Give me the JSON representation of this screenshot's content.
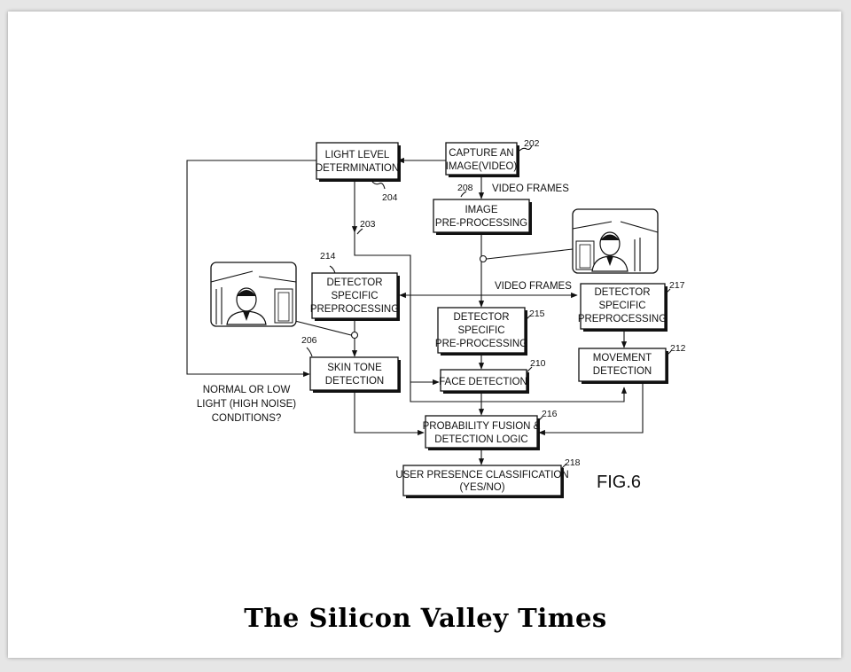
{
  "boxes": {
    "light_level": [
      "LIGHT LEVEL",
      "DETERMINATION"
    ],
    "capture": [
      "CAPTURE AN",
      "IMAGE(VIDEO)"
    ],
    "image_pre": [
      "IMAGE",
      "PRE-PROCESSING"
    ],
    "det_spec_214": [
      "DETECTOR",
      "SPECIFIC",
      "PREPROCESSING"
    ],
    "det_spec_215": [
      "DETECTOR",
      "SPECIFIC",
      "PRE-PROCESSING"
    ],
    "det_spec_217": [
      "DETECTOR",
      "SPECIFIC",
      "PREPROCESSING"
    ],
    "skin_tone": [
      "SKIN TONE",
      "DETECTION"
    ],
    "face_det": [
      "FACE DETECTION"
    ],
    "movement": [
      "MOVEMENT",
      "DETECTION"
    ],
    "fusion": [
      "PROBABILITY FUSION &",
      "DETECTION LOGIC"
    ],
    "presence": [
      "USER PRESENCE CLASSIFICATION",
      "(YES/NO)"
    ]
  },
  "refs": {
    "r202": "202",
    "r204": "204",
    "r203": "203",
    "r208": "208",
    "r214": "214",
    "r215": "215",
    "r217": "217",
    "r206": "206",
    "r210": "210",
    "r212": "212",
    "r216": "216",
    "r218": "218"
  },
  "labels": {
    "video_frames_top": "VIDEO FRAMES",
    "video_frames_mid": "VIDEO FRAMES",
    "condition": [
      "NORMAL OR LOW",
      "LIGHT (HIGH NOISE)",
      "CONDITIONS?"
    ],
    "figure": "FIG.6"
  },
  "masthead": "The Silicon Valley Times"
}
